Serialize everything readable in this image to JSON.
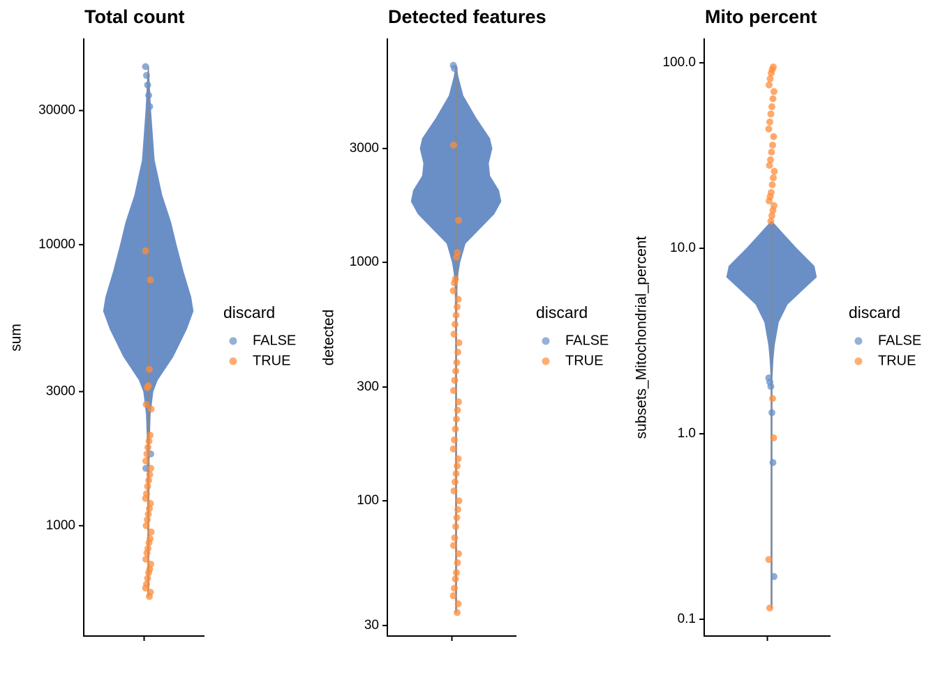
{
  "chart_data": [
    {
      "type": "violin",
      "title": "Total count",
      "y_label": "sum",
      "log_y": true,
      "ylim": [
        405,
        54200
      ],
      "yticks": [
        1000,
        3000,
        10000,
        30000
      ],
      "legend": {
        "title": "discard",
        "position": "right"
      },
      "violin": {
        "y": [
          560,
          600,
          1000,
          2000,
          2500,
          3000,
          3300,
          4000,
          5000,
          5800,
          6500,
          8000,
          10000,
          12000,
          15000,
          20000,
          30000,
          43000
        ],
        "width": [
          0,
          0.01,
          0.01,
          0.02,
          0.04,
          0.1,
          0.2,
          0.55,
          0.85,
          1.0,
          0.95,
          0.78,
          0.62,
          0.5,
          0.3,
          0.13,
          0.05,
          0
        ]
      },
      "series": [
        {
          "name": "FALSE",
          "color": "#6a8fc7",
          "values": [
            43000,
            40000,
            37000,
            34000,
            31000,
            1800,
            1600
          ]
        },
        {
          "name": "TRUE",
          "color": "#ff8c3a",
          "values": [
            560,
            580,
            600,
            620,
            650,
            680,
            700,
            730,
            760,
            800,
            830,
            870,
            900,
            950,
            1000,
            1050,
            1100,
            1150,
            1200,
            1250,
            1300,
            1380,
            1450,
            1520,
            1600,
            1700,
            1800,
            1900,
            2000,
            2100,
            2600,
            2700,
            3100,
            3150,
            3600,
            7500,
            9500
          ]
        }
      ]
    },
    {
      "type": "violin",
      "title": "Detected features",
      "y_label": "detected",
      "log_y": true,
      "ylim": [
        27.1,
        8690
      ],
      "yticks": [
        30,
        100,
        300,
        1000,
        3000
      ],
      "legend": {
        "title": "discard",
        "position": "right"
      },
      "violin": {
        "y": [
          34,
          35,
          100,
          600,
          800,
          900,
          1000,
          1200,
          1400,
          1600,
          1800,
          2000,
          2300,
          2600,
          3000,
          3300,
          4000,
          5000,
          6000,
          6700
        ],
        "width": [
          0,
          0.01,
          0.01,
          0.01,
          0.02,
          0.04,
          0.08,
          0.2,
          0.55,
          0.85,
          1.0,
          0.95,
          0.75,
          0.72,
          0.8,
          0.75,
          0.45,
          0.15,
          0.04,
          0
        ]
      },
      "series": [
        {
          "name": "FALSE",
          "color": "#6a8fc7",
          "values": [
            6700,
            6500
          ]
        },
        {
          "name": "TRUE",
          "color": "#ff8c3a",
          "values": [
            34,
            37,
            40,
            43,
            47,
            50,
            55,
            60,
            65,
            70,
            78,
            85,
            92,
            100,
            110,
            120,
            130,
            140,
            150,
            165,
            180,
            200,
            220,
            240,
            260,
            290,
            320,
            350,
            380,
            420,
            460,
            500,
            550,
            600,
            650,
            700,
            760,
            820,
            850,
            1050,
            1100,
            1500,
            3100
          ]
        }
      ]
    },
    {
      "type": "violin",
      "title": "Mito percent",
      "y_label": "subsets_Mitochondrial_percent",
      "log_y": true,
      "ylim": [
        0.0812,
        135.5
      ],
      "yticks": [
        {
          "value": 0.1,
          "label": "0.1"
        },
        {
          "value": 1,
          "label": "1.0"
        },
        {
          "value": 10,
          "label": "10.0"
        },
        {
          "value": 100,
          "label": "100.0"
        }
      ],
      "legend": {
        "title": "discard",
        "position": "right"
      },
      "violin": {
        "y": [
          0.115,
          0.12,
          2,
          2.5,
          3,
          4,
          5,
          6,
          7,
          8,
          10,
          12,
          14
        ],
        "width": [
          0,
          0.01,
          0.01,
          0.03,
          0.06,
          0.15,
          0.35,
          0.7,
          1.0,
          0.95,
          0.55,
          0.25,
          0
        ]
      },
      "series": [
        {
          "name": "FALSE",
          "color": "#6a8fc7",
          "values": [
            2.0,
            1.9,
            1.8,
            1.3,
            0.7,
            0.17
          ]
        },
        {
          "name": "TRUE",
          "color": "#ff8c3a",
          "values": [
            1.55,
            0.95,
            0.21,
            0.115,
            14,
            15,
            16,
            17,
            18,
            19,
            20,
            22,
            24,
            26,
            28,
            30,
            33,
            36,
            40,
            44,
            48,
            53,
            58,
            64,
            70,
            76,
            82,
            88,
            92,
            95
          ]
        }
      ]
    }
  ]
}
